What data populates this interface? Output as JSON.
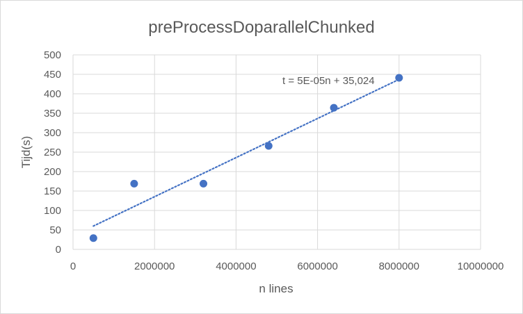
{
  "chart_data": {
    "type": "scatter",
    "title": "preProcessDoparallelChunked",
    "xlabel": "n lines",
    "ylabel": "Tijd(s)",
    "xlim": [
      0,
      10000000
    ],
    "ylim": [
      0,
      500
    ],
    "x_ticks": [
      0,
      2000000,
      4000000,
      6000000,
      8000000,
      10000000
    ],
    "x_tick_labels": [
      "0",
      "2000000",
      "4000000",
      "6000000",
      "8000000",
      "10000000"
    ],
    "y_ticks": [
      0,
      50,
      100,
      150,
      200,
      250,
      300,
      350,
      400,
      450,
      500
    ],
    "y_tick_labels": [
      "0",
      "50",
      "100",
      "150",
      "200",
      "250",
      "300",
      "350",
      "400",
      "450",
      "500"
    ],
    "grid": true,
    "legend": "none",
    "series": [
      {
        "x": [
          500000,
          1500000,
          3200000,
          4800000,
          6400000,
          8000000
        ],
        "y": [
          29,
          169,
          169,
          266,
          364,
          441
        ],
        "color": "#4472c4"
      }
    ],
    "trendline": {
      "label": "t = 5E-05n + 35,024",
      "x_range": [
        500000,
        8000000
      ],
      "y_range": [
        60,
        437
      ],
      "color": "#4472c4",
      "style": "dotted"
    }
  }
}
